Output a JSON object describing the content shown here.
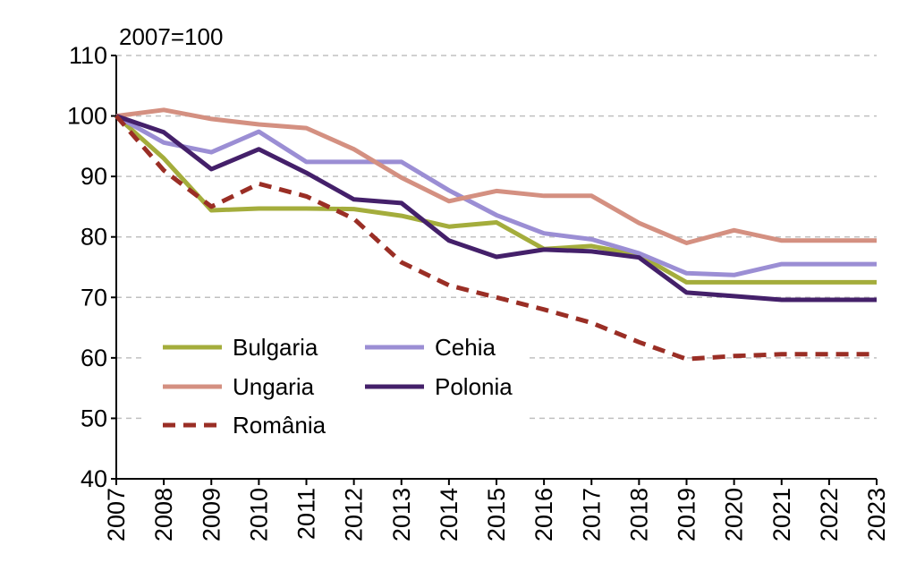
{
  "chart_data": {
    "type": "line",
    "title": "",
    "unit_label": "2007=100",
    "xlabel": "",
    "ylabel": "",
    "x": [
      "2007",
      "2008",
      "2009",
      "2010",
      "2011",
      "2012",
      "2013",
      "2014",
      "2015",
      "2016",
      "2017",
      "2018",
      "2019",
      "2020",
      "2021",
      "2022",
      "2023"
    ],
    "ylim": [
      40,
      110
    ],
    "yticks": [
      40,
      50,
      60,
      70,
      80,
      90,
      100,
      110
    ],
    "grid": true,
    "legend_position": "bottom-left",
    "series": [
      {
        "name": "Bulgaria",
        "color": "#a4ad3c",
        "style": "solid",
        "values": [
          100,
          93,
          84.4,
          84.7,
          84.7,
          84.6,
          83.5,
          81.7,
          82.4,
          78,
          78.5,
          77,
          72.5,
          72.5,
          72.5,
          72.5,
          72.5
        ]
      },
      {
        "name": "Cehia",
        "color": "#9b8ed4",
        "style": "solid",
        "values": [
          100,
          95.6,
          94,
          97.4,
          92.4,
          92.4,
          92.4,
          87.7,
          83.6,
          80.6,
          79.6,
          77.3,
          74,
          73.7,
          75.5,
          75.5,
          75.5
        ]
      },
      {
        "name": "Ungaria",
        "color": "#d49081",
        "style": "solid",
        "values": [
          100,
          101,
          99.5,
          98.6,
          98,
          94.5,
          89.8,
          85.9,
          87.6,
          86.8,
          86.8,
          82.3,
          79,
          81.1,
          79.4,
          79.4,
          79.4
        ]
      },
      {
        "name": "Polonia",
        "color": "#44206a",
        "style": "solid",
        "values": [
          100,
          97.3,
          91.2,
          94.5,
          90.6,
          86.2,
          85.6,
          79.4,
          76.7,
          77.9,
          77.6,
          76.6,
          70.8,
          70.2,
          69.6,
          69.6,
          69.6
        ]
      },
      {
        "name": "România",
        "color": "#9a2e25",
        "style": "dashed",
        "values": [
          100,
          91,
          85,
          88.8,
          86.7,
          83,
          75.8,
          72,
          70,
          68,
          65.8,
          62.6,
          59.8,
          60.3,
          60.6,
          60.6,
          60.6
        ]
      }
    ]
  }
}
